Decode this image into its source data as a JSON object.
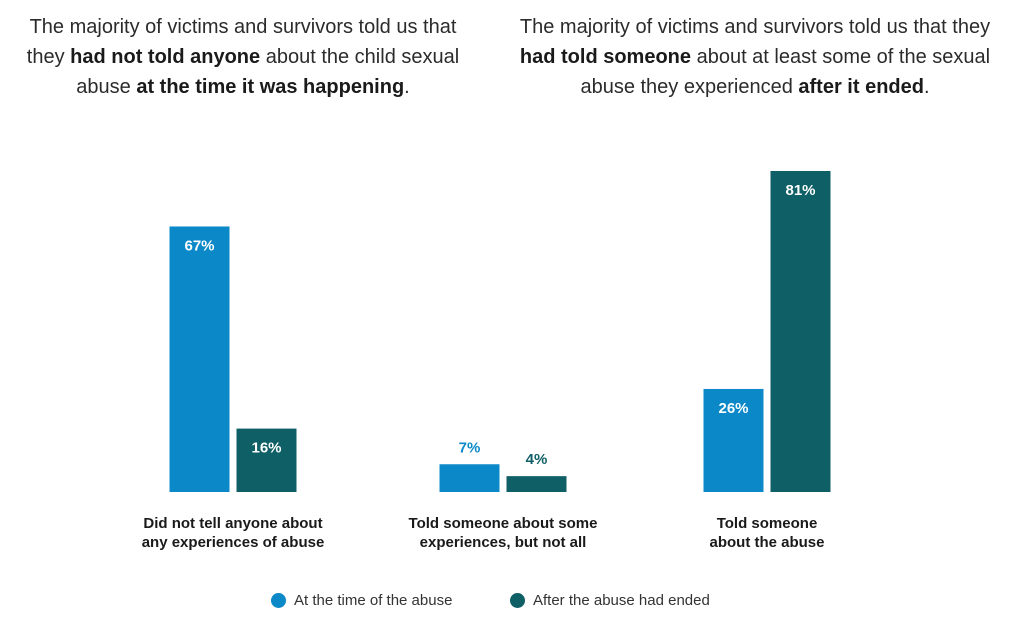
{
  "intro": {
    "left": {
      "parts": [
        {
          "text": "The majority of victims and survivors told us that they ",
          "bold": false
        },
        {
          "text": "had not told anyone",
          "bold": true
        },
        {
          "text": " about the child sexual abuse ",
          "bold": false
        },
        {
          "text": "at the time it was happening",
          "bold": true
        },
        {
          "text": ".",
          "bold": false
        }
      ]
    },
    "right": {
      "parts": [
        {
          "text": "The majority of victims and survivors told us that they ",
          "bold": false
        },
        {
          "text": "had told someone",
          "bold": true
        },
        {
          "text": " about at least some of the sexual abuse they experienced ",
          "bold": false
        },
        {
          "text": "after it ended",
          "bold": true
        },
        {
          "text": ".",
          "bold": false
        }
      ]
    }
  },
  "colors": {
    "at_time": "#0a88c8",
    "after": "#0f5f66",
    "label_text": "#ffffff",
    "outside_label_text": "#0a88c8",
    "outside_label_text_after": "#0f5f66"
  },
  "chart_data": {
    "type": "bar",
    "categories": [
      [
        "Did not tell anyone about",
        "any experiences of abuse"
      ],
      [
        "Told someone about some",
        "experiences, but not all"
      ],
      [
        "Told someone",
        "about the abuse"
      ]
    ],
    "series": [
      {
        "name": "At the time of the abuse",
        "values": [
          67,
          7,
          26
        ],
        "labels": [
          "67%",
          "7%",
          "26%"
        ]
      },
      {
        "name": "After the abuse had ended",
        "values": [
          16,
          4,
          81
        ],
        "labels": [
          "16%",
          "4%",
          "81%"
        ]
      }
    ],
    "ylim": [
      0,
      81
    ],
    "grid": false,
    "legend_position": "bottom-center"
  }
}
